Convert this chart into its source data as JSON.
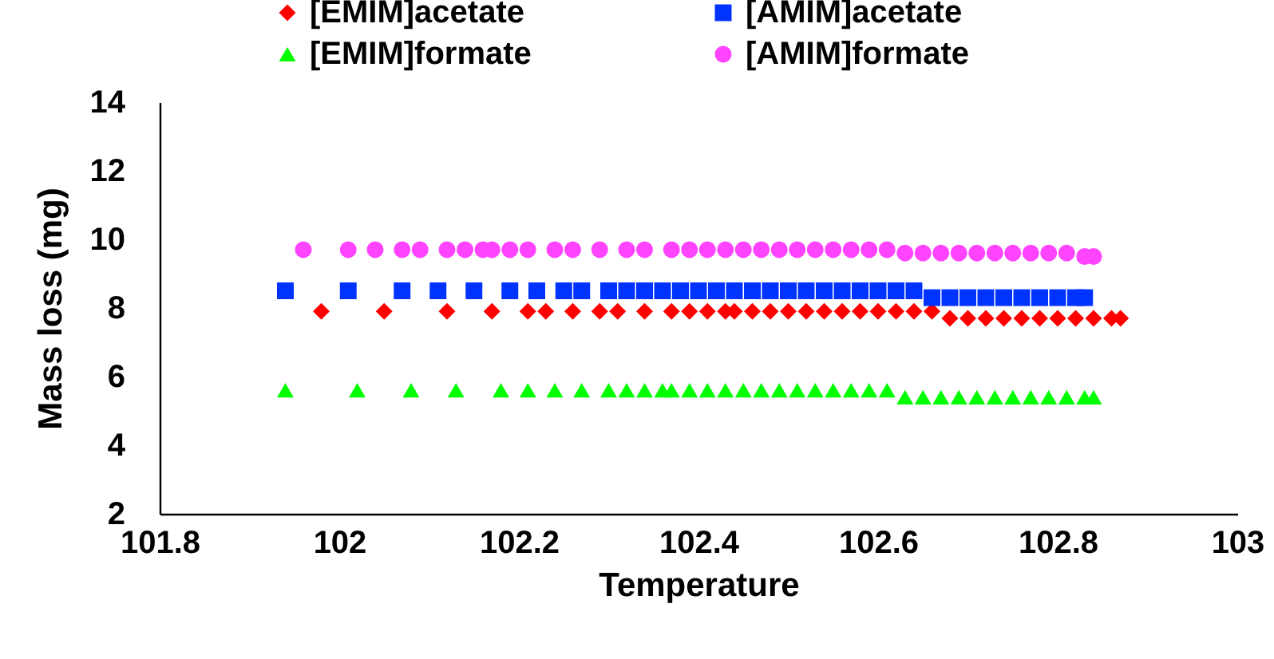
{
  "chart_data": {
    "type": "scatter",
    "xlabel": "Temperature",
    "ylabel": "Mass loss (mg)",
    "xlim": [
      101.8,
      103
    ],
    "xticks": [
      101.8,
      102,
      102.2,
      102.4,
      102.6,
      102.8,
      103
    ],
    "ylim": [
      2,
      14
    ],
    "yticks": [
      2,
      4,
      6,
      8,
      10,
      12,
      14
    ],
    "legend": "top",
    "series": [
      {
        "name": "[EMIM]acetate",
        "color": "#ff0000",
        "marker": "diamond",
        "x": [
          101.98,
          102.05,
          102.12,
          102.17,
          102.21,
          102.23,
          102.26,
          102.29,
          102.31,
          102.34,
          102.37,
          102.39,
          102.41,
          102.43,
          102.44,
          102.46,
          102.48,
          102.5,
          102.52,
          102.54,
          102.56,
          102.58,
          102.6,
          102.62,
          102.64,
          102.66,
          102.68,
          102.7,
          102.72,
          102.74,
          102.76,
          102.78,
          102.8,
          102.82,
          102.84,
          102.86,
          102.87
        ],
        "values": [
          7.9,
          7.9,
          7.9,
          7.9,
          7.9,
          7.9,
          7.9,
          7.9,
          7.9,
          7.9,
          7.9,
          7.9,
          7.9,
          7.9,
          7.9,
          7.9,
          7.9,
          7.9,
          7.9,
          7.9,
          7.9,
          7.9,
          7.9,
          7.9,
          7.9,
          7.9,
          7.7,
          7.7,
          7.7,
          7.7,
          7.7,
          7.7,
          7.7,
          7.7,
          7.7,
          7.7,
          7.7
        ]
      },
      {
        "name": "[AMIM]acetate",
        "color": "#0033ff",
        "marker": "square",
        "x": [
          101.94,
          102.01,
          102.07,
          102.11,
          102.15,
          102.19,
          102.22,
          102.25,
          102.27,
          102.3,
          102.32,
          102.34,
          102.36,
          102.38,
          102.4,
          102.42,
          102.44,
          102.46,
          102.48,
          102.5,
          102.52,
          102.54,
          102.56,
          102.58,
          102.6,
          102.62,
          102.64,
          102.66,
          102.68,
          102.7,
          102.72,
          102.74,
          102.76,
          102.78,
          102.8,
          102.82,
          102.83
        ],
        "values": [
          8.5,
          8.5,
          8.5,
          8.5,
          8.5,
          8.5,
          8.5,
          8.5,
          8.5,
          8.5,
          8.5,
          8.5,
          8.5,
          8.5,
          8.5,
          8.5,
          8.5,
          8.5,
          8.5,
          8.5,
          8.5,
          8.5,
          8.5,
          8.5,
          8.5,
          8.5,
          8.5,
          8.3,
          8.3,
          8.3,
          8.3,
          8.3,
          8.3,
          8.3,
          8.3,
          8.3,
          8.3
        ]
      },
      {
        "name": "[EMIM]formate",
        "color": "#00ff00",
        "marker": "triangle",
        "x": [
          101.94,
          102.02,
          102.08,
          102.13,
          102.18,
          102.21,
          102.24,
          102.27,
          102.3,
          102.32,
          102.34,
          102.36,
          102.37,
          102.39,
          102.41,
          102.43,
          102.45,
          102.47,
          102.49,
          102.51,
          102.53,
          102.55,
          102.57,
          102.59,
          102.61,
          102.63,
          102.65,
          102.67,
          102.69,
          102.71,
          102.73,
          102.75,
          102.77,
          102.79,
          102.81,
          102.83,
          102.84
        ],
        "values": [
          5.6,
          5.6,
          5.6,
          5.6,
          5.6,
          5.6,
          5.6,
          5.6,
          5.6,
          5.6,
          5.6,
          5.6,
          5.6,
          5.6,
          5.6,
          5.6,
          5.6,
          5.6,
          5.6,
          5.6,
          5.6,
          5.6,
          5.6,
          5.6,
          5.6,
          5.4,
          5.4,
          5.4,
          5.4,
          5.4,
          5.4,
          5.4,
          5.4,
          5.4,
          5.4,
          5.4,
          5.4
        ]
      },
      {
        "name": "[AMIM]formate",
        "color": "#ff44ff",
        "marker": "circle",
        "x": [
          101.96,
          102.01,
          102.04,
          102.07,
          102.09,
          102.12,
          102.14,
          102.16,
          102.17,
          102.19,
          102.21,
          102.24,
          102.26,
          102.29,
          102.32,
          102.34,
          102.37,
          102.39,
          102.41,
          102.43,
          102.45,
          102.47,
          102.49,
          102.51,
          102.53,
          102.55,
          102.57,
          102.59,
          102.61,
          102.63,
          102.65,
          102.67,
          102.69,
          102.71,
          102.73,
          102.75,
          102.77,
          102.79,
          102.81,
          102.83,
          102.84
        ],
        "values": [
          9.7,
          9.7,
          9.7,
          9.7,
          9.7,
          9.7,
          9.7,
          9.7,
          9.7,
          9.7,
          9.7,
          9.7,
          9.7,
          9.7,
          9.7,
          9.7,
          9.7,
          9.7,
          9.7,
          9.7,
          9.7,
          9.7,
          9.7,
          9.7,
          9.7,
          9.7,
          9.7,
          9.7,
          9.7,
          9.6,
          9.6,
          9.6,
          9.6,
          9.6,
          9.6,
          9.6,
          9.6,
          9.6,
          9.6,
          9.5,
          9.5
        ]
      }
    ]
  }
}
